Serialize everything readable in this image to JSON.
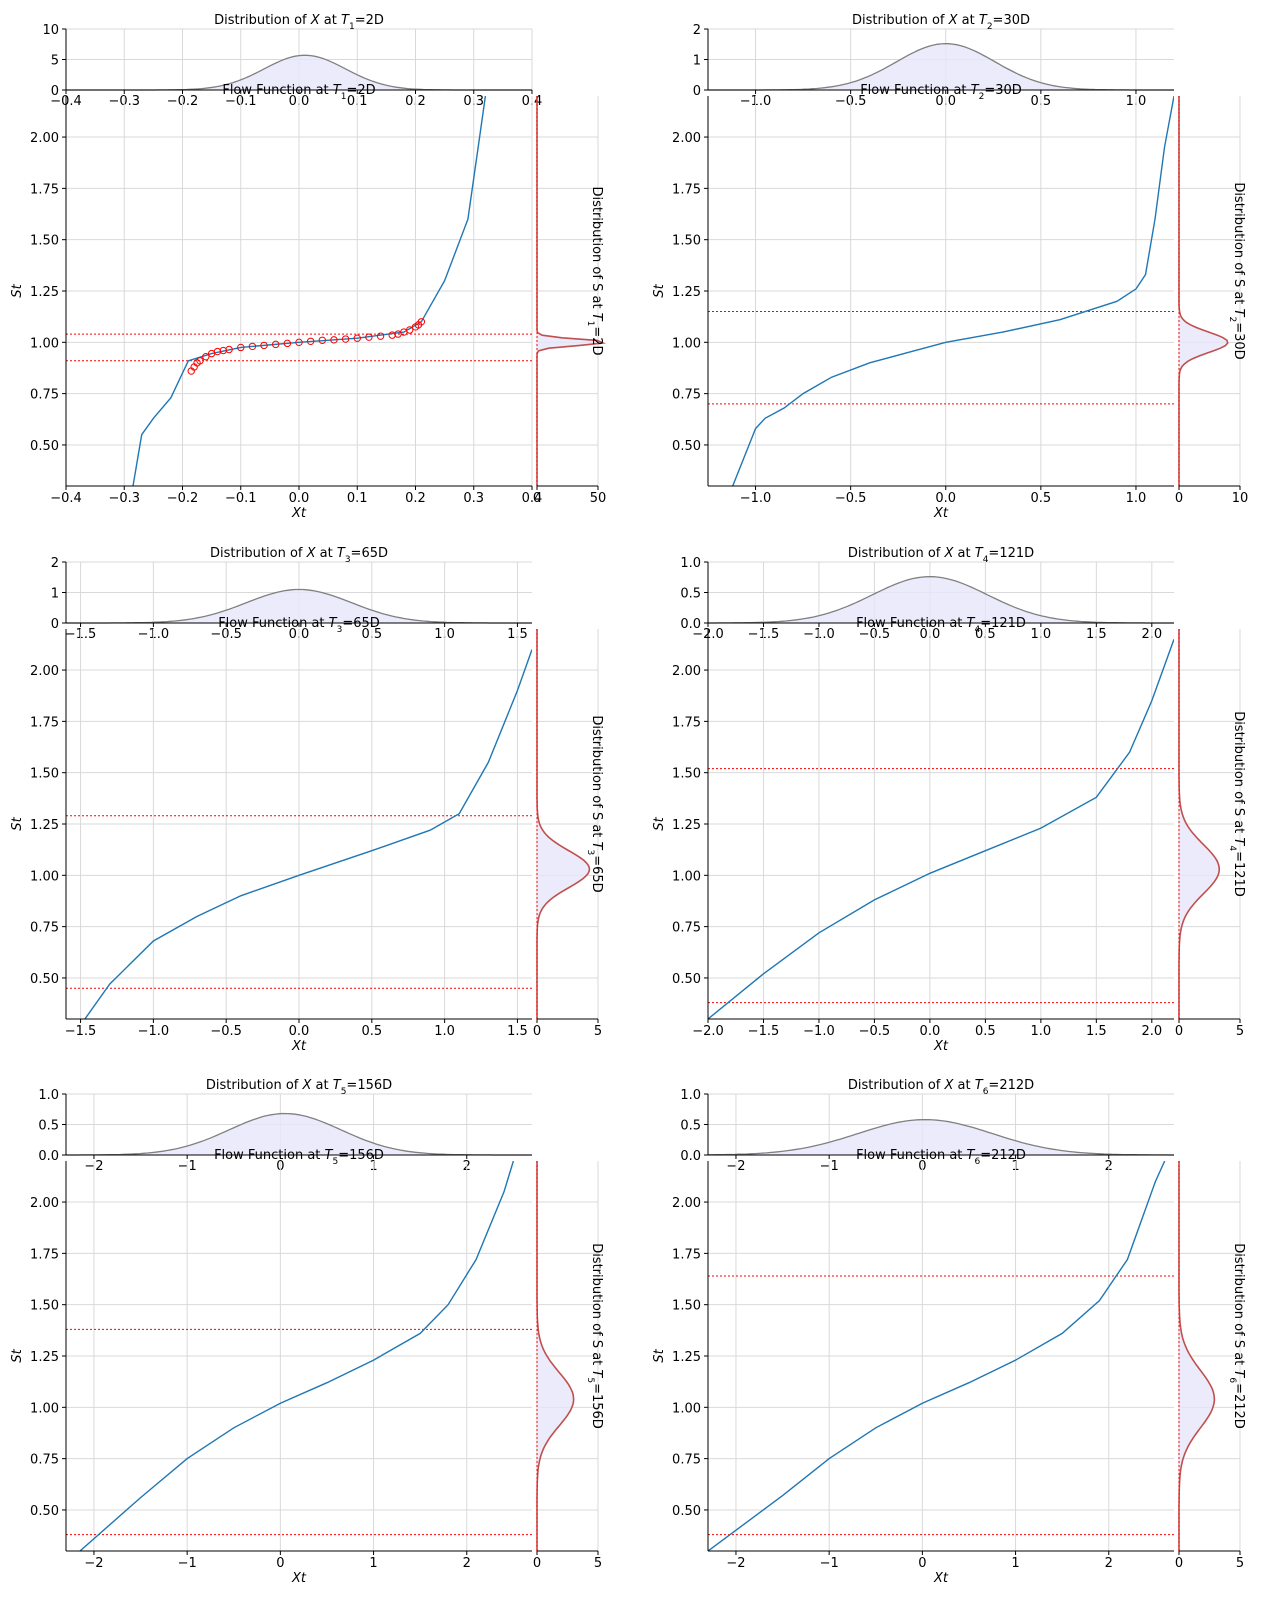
{
  "chart_data": [
    {
      "type": "line",
      "panel": "T1",
      "dist_x": {
        "title": "Distribution of X at T1=2D",
        "ylim": [
          0,
          10
        ],
        "yticks": [
          0,
          5,
          10
        ],
        "xlim": [
          -0.4,
          0.4
        ],
        "xticks": [
          -0.4,
          -0.3,
          -0.2,
          -0.1,
          0.0,
          0.1,
          0.2,
          0.3,
          0.4
        ],
        "xtick_labels": [
          "−0.4",
          "−0.3",
          "−0.2",
          "−0.1",
          "0.0",
          "0.1",
          "0.2",
          "0.3",
          "0.4"
        ],
        "mean": 0.01,
        "sd": 0.07,
        "peak": 5.7
      },
      "flow": {
        "title": "Flow Function at T1=2D",
        "xlabel": "Xt",
        "ylabel": "St",
        "xlim": [
          -0.4,
          0.4
        ],
        "ylim": [
          0.3,
          2.2
        ],
        "xticks": [
          -0.4,
          -0.3,
          -0.2,
          -0.1,
          0.0,
          0.1,
          0.2,
          0.3,
          0.4
        ],
        "xtick_labels": [
          "−0.4",
          "−0.3",
          "−0.2",
          "−0.1",
          "0.0",
          "0.1",
          "0.2",
          "0.3",
          "0.4"
        ],
        "yticks": [
          0.5,
          0.75,
          1.0,
          1.25,
          1.5,
          1.75,
          2.0
        ],
        "ytick_labels": [
          "0.50",
          "0.75",
          "1.00",
          "1.25",
          "1.50",
          "1.75",
          "2.00"
        ],
        "curve": [
          [
            -0.285,
            0.3
          ],
          [
            -0.27,
            0.55
          ],
          [
            -0.25,
            0.63
          ],
          [
            -0.22,
            0.73
          ],
          [
            -0.19,
            0.91
          ],
          [
            -0.15,
            0.945
          ],
          [
            -0.1,
            0.975
          ],
          [
            0.0,
            1.0
          ],
          [
            0.1,
            1.02
          ],
          [
            0.18,
            1.05
          ],
          [
            0.21,
            1.1
          ],
          [
            0.25,
            1.3
          ],
          [
            0.29,
            1.6
          ],
          [
            0.31,
            2.0
          ],
          [
            0.32,
            2.2
          ]
        ],
        "hlines": [
          1.04,
          0.91
        ],
        "markers": [
          [
            -0.185,
            0.86
          ],
          [
            -0.18,
            0.88
          ],
          [
            -0.175,
            0.9
          ],
          [
            -0.17,
            0.91
          ],
          [
            -0.16,
            0.93
          ],
          [
            -0.15,
            0.945
          ],
          [
            -0.14,
            0.955
          ],
          [
            -0.13,
            0.96
          ],
          [
            -0.12,
            0.965
          ],
          [
            -0.1,
            0.975
          ],
          [
            -0.08,
            0.98
          ],
          [
            -0.06,
            0.985
          ],
          [
            -0.04,
            0.99
          ],
          [
            -0.02,
            0.995
          ],
          [
            0.0,
            1.0
          ],
          [
            0.02,
            1.005
          ],
          [
            0.04,
            1.01
          ],
          [
            0.06,
            1.012
          ],
          [
            0.08,
            1.016
          ],
          [
            0.1,
            1.02
          ],
          [
            0.12,
            1.025
          ],
          [
            0.14,
            1.03
          ],
          [
            0.16,
            1.035
          ],
          [
            0.17,
            1.04
          ],
          [
            0.18,
            1.05
          ],
          [
            0.19,
            1.06
          ],
          [
            0.2,
            1.075
          ],
          [
            0.205,
            1.085
          ],
          [
            0.21,
            1.1
          ]
        ]
      },
      "dist_s": {
        "title": "Distribution of S at T1=2D",
        "xlim": [
          0,
          50
        ],
        "xticks": [
          0,
          50
        ],
        "mean": 1.0,
        "sd": 0.015,
        "peak": 60
      }
    },
    {
      "type": "line",
      "panel": "T2",
      "dist_x": {
        "title": "Distribution of X at T2=30D",
        "ylim": [
          0,
          2
        ],
        "yticks": [
          0,
          1,
          2
        ],
        "xlim": [
          -1.25,
          1.2
        ],
        "xticks": [
          -1.0,
          -0.5,
          0.0,
          0.5,
          1.0
        ],
        "xtick_labels": [
          "−1.0",
          "−0.5",
          "0.0",
          "0.5",
          "1.0"
        ],
        "mean": 0.0,
        "sd": 0.26,
        "peak": 1.52
      },
      "flow": {
        "title": "Flow Function at T2=30D",
        "xlabel": "Xt",
        "ylabel": "St",
        "xlim": [
          -1.25,
          1.2
        ],
        "ylim": [
          0.3,
          2.2
        ],
        "xticks": [
          -1.0,
          -0.5,
          0.0,
          0.5,
          1.0
        ],
        "xtick_labels": [
          "−1.0",
          "−0.5",
          "0.0",
          "0.5",
          "1.0"
        ],
        "yticks": [
          0.5,
          0.75,
          1.0,
          1.25,
          1.5,
          1.75,
          2.0
        ],
        "ytick_labels": [
          "0.50",
          "0.75",
          "1.00",
          "1.25",
          "1.50",
          "1.75",
          "2.00"
        ],
        "curve": [
          [
            -1.12,
            0.3
          ],
          [
            -1.0,
            0.58
          ],
          [
            -0.95,
            0.63
          ],
          [
            -0.85,
            0.68
          ],
          [
            -0.75,
            0.75
          ],
          [
            -0.6,
            0.83
          ],
          [
            -0.4,
            0.9
          ],
          [
            -0.2,
            0.95
          ],
          [
            0.0,
            1.0
          ],
          [
            0.3,
            1.05
          ],
          [
            0.6,
            1.11
          ],
          [
            0.9,
            1.2
          ],
          [
            1.0,
            1.26
          ],
          [
            1.05,
            1.33
          ],
          [
            1.1,
            1.6
          ],
          [
            1.15,
            1.95
          ],
          [
            1.2,
            2.2
          ]
        ],
        "hlines": [
          1.15,
          0.7
        ],
        "markers": []
      },
      "dist_s": {
        "title": "Distribution of S at T2=30D",
        "xlim": [
          0,
          10
        ],
        "xticks": [
          0,
          10
        ],
        "mean": 1.0,
        "sd": 0.05,
        "peak": 8
      }
    },
    {
      "type": "line",
      "panel": "T3",
      "dist_x": {
        "title": "Distribution of X at T3=65D",
        "ylim": [
          0,
          2
        ],
        "yticks": [
          0,
          1,
          2
        ],
        "xlim": [
          -1.6,
          1.6
        ],
        "xticks": [
          -1.5,
          -1.0,
          -0.5,
          0.0,
          0.5,
          1.0,
          1.5
        ],
        "xtick_labels": [
          "−1.5",
          "−1.0",
          "−0.5",
          "0.0",
          "0.5",
          "1.0",
          "1.5"
        ],
        "mean": 0.0,
        "sd": 0.36,
        "peak": 1.1
      },
      "flow": {
        "title": "Flow Function at T3=65D",
        "xlabel": "Xt",
        "ylabel": "St",
        "xlim": [
          -1.6,
          1.6
        ],
        "ylim": [
          0.3,
          2.2
        ],
        "xticks": [
          -1.5,
          -1.0,
          -0.5,
          0.0,
          0.5,
          1.0,
          1.5
        ],
        "xtick_labels": [
          "−1.5",
          "−1.0",
          "−0.5",
          "0.0",
          "0.5",
          "1.0",
          "1.5"
        ],
        "yticks": [
          0.5,
          0.75,
          1.0,
          1.25,
          1.5,
          1.75,
          2.0
        ],
        "ytick_labels": [
          "0.50",
          "0.75",
          "1.00",
          "1.25",
          "1.50",
          "1.75",
          "2.00"
        ],
        "curve": [
          [
            -1.47,
            0.3
          ],
          [
            -1.3,
            0.47
          ],
          [
            -1.0,
            0.68
          ],
          [
            -0.7,
            0.8
          ],
          [
            -0.4,
            0.9
          ],
          [
            0.0,
            1.0
          ],
          [
            0.5,
            1.12
          ],
          [
            0.9,
            1.22
          ],
          [
            1.1,
            1.3
          ],
          [
            1.3,
            1.55
          ],
          [
            1.5,
            1.9
          ],
          [
            1.6,
            2.1
          ]
        ],
        "hlines": [
          1.29,
          0.45
        ],
        "markers": []
      },
      "dist_s": {
        "title": "Distribution of S at T3=65D",
        "xlim": [
          0,
          5
        ],
        "xticks": [
          0,
          5
        ],
        "mean": 1.03,
        "sd": 0.09,
        "peak": 4.3
      }
    },
    {
      "type": "line",
      "panel": "T4",
      "dist_x": {
        "title": "Distribution of X at T4=121D",
        "ylim": [
          0,
          1.0
        ],
        "yticks": [
          0.0,
          0.5,
          1.0
        ],
        "xlim": [
          -2.0,
          2.2
        ],
        "xticks": [
          -2.0,
          -1.5,
          -1.0,
          -0.5,
          0.0,
          0.5,
          1.0,
          1.5,
          2.0
        ],
        "xtick_labels": [
          "−2.0",
          "−1.5",
          "−1.0",
          "−0.5",
          "0.0",
          "0.5",
          "1.0",
          "1.5",
          "2.0"
        ],
        "mean": 0.0,
        "sd": 0.52,
        "peak": 0.76
      },
      "flow": {
        "title": "Flow Function at T4=121D",
        "xlabel": "Xt",
        "ylabel": "St",
        "xlim": [
          -2.0,
          2.2
        ],
        "ylim": [
          0.3,
          2.2
        ],
        "xticks": [
          -2.0,
          -1.5,
          -1.0,
          -0.5,
          0.0,
          0.5,
          1.0,
          1.5,
          2.0
        ],
        "xtick_labels": [
          "−2.0",
          "−1.5",
          "−1.0",
          "−0.5",
          "0.0",
          "0.5",
          "1.0",
          "1.5",
          "2.0"
        ],
        "yticks": [
          0.5,
          0.75,
          1.0,
          1.25,
          1.5,
          1.75,
          2.0
        ],
        "ytick_labels": [
          "0.50",
          "0.75",
          "1.00",
          "1.25",
          "1.50",
          "1.75",
          "2.00"
        ],
        "curve": [
          [
            -2.0,
            0.3
          ],
          [
            -1.5,
            0.52
          ],
          [
            -1.0,
            0.72
          ],
          [
            -0.5,
            0.88
          ],
          [
            0.0,
            1.01
          ],
          [
            0.5,
            1.12
          ],
          [
            1.0,
            1.23
          ],
          [
            1.5,
            1.38
          ],
          [
            1.8,
            1.6
          ],
          [
            2.0,
            1.85
          ],
          [
            2.2,
            2.15
          ]
        ],
        "hlines": [
          1.52,
          0.38
        ],
        "markers": []
      },
      "dist_s": {
        "title": "Distribution of S at T4=121D",
        "xlim": [
          0,
          5
        ],
        "xticks": [
          0,
          5
        ],
        "mean": 1.03,
        "sd": 0.12,
        "peak": 3.3
      }
    },
    {
      "type": "line",
      "panel": "T5",
      "dist_x": {
        "title": "Distribution of X at T5=156D",
        "ylim": [
          0,
          1.0
        ],
        "yticks": [
          0.0,
          0.5,
          1.0
        ],
        "xlim": [
          -2.3,
          2.7
        ],
        "xticks": [
          -2,
          -1,
          0,
          1,
          2
        ],
        "xtick_labels": [
          "−2",
          "−1",
          "0",
          "1",
          "2"
        ],
        "mean": 0.05,
        "sd": 0.6,
        "peak": 0.68
      },
      "flow": {
        "title": "Flow Function at T5=156D",
        "xlabel": "Xt",
        "ylabel": "St",
        "xlim": [
          -2.3,
          2.7
        ],
        "ylim": [
          0.3,
          2.2
        ],
        "xticks": [
          -2,
          -1,
          0,
          1,
          2
        ],
        "xtick_labels": [
          "−2",
          "−1",
          "0",
          "1",
          "2"
        ],
        "yticks": [
          0.5,
          0.75,
          1.0,
          1.25,
          1.5,
          1.75,
          2.0
        ],
        "ytick_labels": [
          "0.50",
          "0.75",
          "1.00",
          "1.25",
          "1.50",
          "1.75",
          "2.00"
        ],
        "curve": [
          [
            -2.15,
            0.3
          ],
          [
            -1.5,
            0.56
          ],
          [
            -1.0,
            0.75
          ],
          [
            -0.5,
            0.9
          ],
          [
            0.0,
            1.02
          ],
          [
            0.5,
            1.12
          ],
          [
            1.0,
            1.23
          ],
          [
            1.5,
            1.36
          ],
          [
            1.8,
            1.5
          ],
          [
            2.1,
            1.72
          ],
          [
            2.4,
            2.05
          ],
          [
            2.5,
            2.2
          ]
        ],
        "hlines": [
          1.38,
          0.38
        ],
        "markers": []
      },
      "dist_s": {
        "title": "Distribution of S at T5=156D",
        "xlim": [
          0,
          5
        ],
        "xticks": [
          0,
          5
        ],
        "mean": 1.04,
        "sd": 0.13,
        "peak": 3.0
      }
    },
    {
      "type": "line",
      "panel": "T6",
      "dist_x": {
        "title": "Distribution of X at T6=212D",
        "ylim": [
          0,
          1.0
        ],
        "yticks": [
          0.0,
          0.5,
          1.0
        ],
        "xlim": [
          -2.3,
          2.7
        ],
        "xticks": [
          -2,
          -1,
          0,
          1,
          2
        ],
        "xtick_labels": [
          "−2",
          "−1",
          "0",
          "1",
          "2"
        ],
        "mean": 0.03,
        "sd": 0.72,
        "peak": 0.58
      },
      "flow": {
        "title": "Flow Function at T6=212D",
        "xlabel": "Xt",
        "ylabel": "St",
        "xlim": [
          -2.3,
          2.7
        ],
        "ylim": [
          0.3,
          2.2
        ],
        "xticks": [
          -2,
          -1,
          0,
          1,
          2
        ],
        "xtick_labels": [
          "−2",
          "−1",
          "0",
          "1",
          "2"
        ],
        "yticks": [
          0.5,
          0.75,
          1.0,
          1.25,
          1.5,
          1.75,
          2.0
        ],
        "ytick_labels": [
          "0.50",
          "0.75",
          "1.00",
          "1.25",
          "1.50",
          "1.75",
          "2.00"
        ],
        "curve": [
          [
            -2.3,
            0.3
          ],
          [
            -1.5,
            0.57
          ],
          [
            -1.0,
            0.75
          ],
          [
            -0.5,
            0.9
          ],
          [
            0.0,
            1.02
          ],
          [
            0.5,
            1.12
          ],
          [
            1.0,
            1.23
          ],
          [
            1.5,
            1.36
          ],
          [
            1.9,
            1.52
          ],
          [
            2.2,
            1.72
          ],
          [
            2.5,
            2.1
          ],
          [
            2.6,
            2.2
          ]
        ],
        "hlines": [
          1.64,
          0.38
        ],
        "markers": []
      },
      "dist_s": {
        "title": "Distribution of S at T6=212D",
        "xlim": [
          0,
          5
        ],
        "xticks": [
          0,
          5
        ],
        "mean": 1.04,
        "sd": 0.14,
        "peak": 2.9
      }
    }
  ],
  "colors": {
    "flow_line": "#1f77b4",
    "hline": "#ff0000",
    "marker": "#ff0000",
    "dist_fill": "#e6e6fa",
    "dist_line": "#808080",
    "s_dist_line": "#c0504d",
    "grid": "#d9d9d9"
  }
}
